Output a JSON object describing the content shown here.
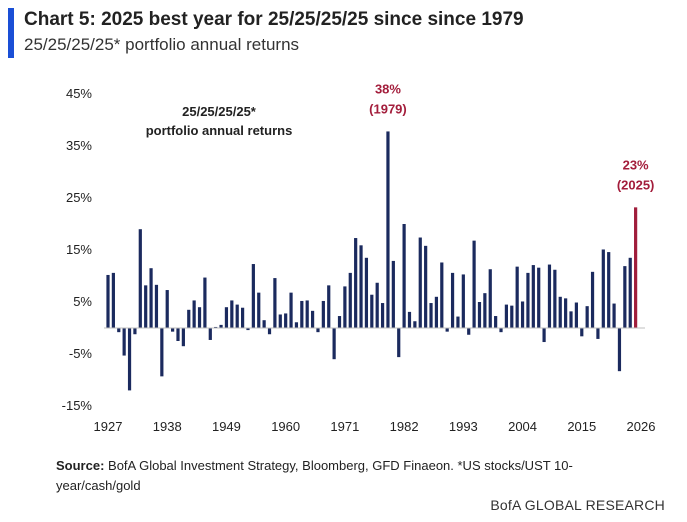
{
  "header": {
    "title": "Chart 5: 2025 best year for 25/25/25/25 since since 1979",
    "subtitle": "25/25/25/25* portfolio annual returns"
  },
  "footer": {
    "source_label": "Source:",
    "source_text": " BofA Global Investment Strategy, Bloomberg, GFD Finaeon. *US stocks/UST 10-year/cash/gold",
    "brand": "BofA GLOBAL RESEARCH"
  },
  "colors": {
    "accent": "#1a4fd6",
    "bar": "#1b2a5e",
    "highlight": "#a01e3c",
    "annotation": "#a31d3b"
  },
  "chart_data": {
    "type": "bar",
    "title": "25/25/25/25* portfolio annual returns",
    "inner_label_line1": "25/25/25/25*",
    "inner_label_line2": "portfolio annual returns",
    "ylim": [
      -15,
      45
    ],
    "yticks": [
      -15,
      -5,
      5,
      15,
      25,
      35,
      45
    ],
    "ytick_labels": [
      "-15%",
      "-5%",
      "5%",
      "15%",
      "25%",
      "35%",
      "45%"
    ],
    "xtick_labels": [
      "1927",
      "1938",
      "1949",
      "1960",
      "1971",
      "1982",
      "1993",
      "2004",
      "2015",
      "2026"
    ],
    "x": [
      1927,
      1928,
      1929,
      1930,
      1931,
      1932,
      1933,
      1934,
      1935,
      1936,
      1937,
      1938,
      1939,
      1940,
      1941,
      1942,
      1943,
      1944,
      1945,
      1946,
      1947,
      1948,
      1949,
      1950,
      1951,
      1952,
      1953,
      1954,
      1955,
      1956,
      1957,
      1958,
      1959,
      1960,
      1961,
      1962,
      1963,
      1964,
      1965,
      1966,
      1967,
      1968,
      1969,
      1970,
      1971,
      1972,
      1973,
      1974,
      1975,
      1976,
      1977,
      1978,
      1979,
      1980,
      1981,
      1982,
      1983,
      1984,
      1985,
      1986,
      1987,
      1988,
      1989,
      1990,
      1991,
      1992,
      1993,
      1994,
      1995,
      1996,
      1997,
      1998,
      1999,
      2000,
      2001,
      2002,
      2003,
      2004,
      2005,
      2006,
      2007,
      2008,
      2009,
      2010,
      2011,
      2012,
      2013,
      2014,
      2015,
      2016,
      2017,
      2018,
      2019,
      2020,
      2021,
      2022,
      2023,
      2024,
      2025
    ],
    "series": [
      {
        "values": [
          10.2,
          10.6,
          -0.8,
          -5.3,
          -12.0,
          -1.2,
          19.0,
          8.2,
          11.5,
          8.3,
          -9.3,
          7.3,
          -0.7,
          -2.5,
          -3.5,
          3.5,
          5.3,
          4.0,
          9.7,
          -2.3,
          0.2,
          0.6,
          4.0,
          5.3,
          4.5,
          3.9,
          -0.4,
          12.3,
          6.8,
          1.5,
          -1.2,
          9.6,
          2.6,
          2.8,
          6.8,
          1.1,
          5.2,
          5.3,
          3.3,
          -0.8,
          5.2,
          8.2,
          -6.0,
          2.3,
          8.0,
          10.6,
          17.3,
          15.9,
          13.5,
          6.4,
          8.7,
          4.8,
          37.8,
          12.9,
          -5.6,
          20.0,
          3.1,
          1.3,
          17.4,
          15.8,
          4.8,
          6.0,
          12.6,
          -0.7,
          10.6,
          2.2,
          10.3,
          -1.3,
          16.8,
          5.0,
          6.7,
          11.3,
          2.3,
          -0.8,
          4.5,
          4.3,
          11.8,
          5.1,
          10.6,
          12.1,
          11.6,
          -2.7,
          12.2,
          11.2,
          6.0,
          5.7,
          3.2,
          4.9,
          -1.6,
          4.2,
          10.8,
          -2.1,
          15.1,
          14.6,
          4.7,
          -8.3,
          11.9,
          13.5,
          23.2
        ]
      }
    ],
    "annotations": [
      {
        "x": 1979,
        "value_label": "38%",
        "year_label": "(1979)"
      },
      {
        "x": 2025,
        "value_label": "23%",
        "year_label": "(2025)"
      }
    ],
    "highlight_x": 2025,
    "grid": false,
    "legend": "none"
  }
}
